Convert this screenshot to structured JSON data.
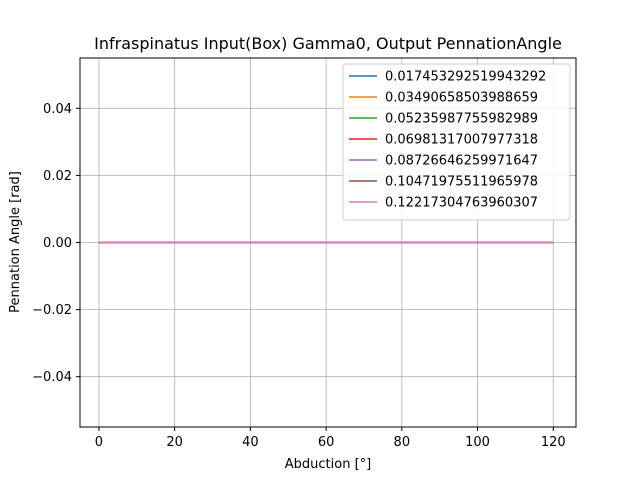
{
  "chart_data": {
    "type": "line",
    "title": "Infraspinatus Input(Box) Gamma0, Output PennationAngle",
    "xlabel": "Abduction [°]",
    "ylabel": "Pennation Angle [rad]",
    "xlim": [
      -5,
      126
    ],
    "ylim": [
      -0.055,
      0.055
    ],
    "xticks": [
      0,
      20,
      40,
      60,
      80,
      100,
      120
    ],
    "xtick_labels": [
      "0",
      "20",
      "40",
      "60",
      "80",
      "100",
      "120"
    ],
    "yticks": [
      -0.04,
      -0.02,
      0.0,
      0.02,
      0.04
    ],
    "ytick_labels": [
      "−0.04",
      "−0.02",
      "0.00",
      "0.02",
      "0.04"
    ],
    "grid": true,
    "legend_position": "top-right",
    "x": [
      0,
      120
    ],
    "series": [
      {
        "name": "0.017453292519943292",
        "color": "#1f77b4",
        "values": [
          0,
          0
        ]
      },
      {
        "name": "0.03490658503988659",
        "color": "#ff7f0e",
        "values": [
          0,
          0
        ]
      },
      {
        "name": "0.05235987755982989",
        "color": "#2ca02c",
        "values": [
          0,
          0
        ]
      },
      {
        "name": "0.06981317007977318",
        "color": "#d62728",
        "values": [
          0,
          0
        ]
      },
      {
        "name": "0.08726646259971647",
        "color": "#9467bd",
        "values": [
          0,
          0
        ]
      },
      {
        "name": "0.10471975511965978",
        "color": "#8c564b",
        "values": [
          0,
          0
        ]
      },
      {
        "name": "0.12217304763960307",
        "color": "#e377c2",
        "values": [
          0,
          0
        ]
      }
    ]
  }
}
